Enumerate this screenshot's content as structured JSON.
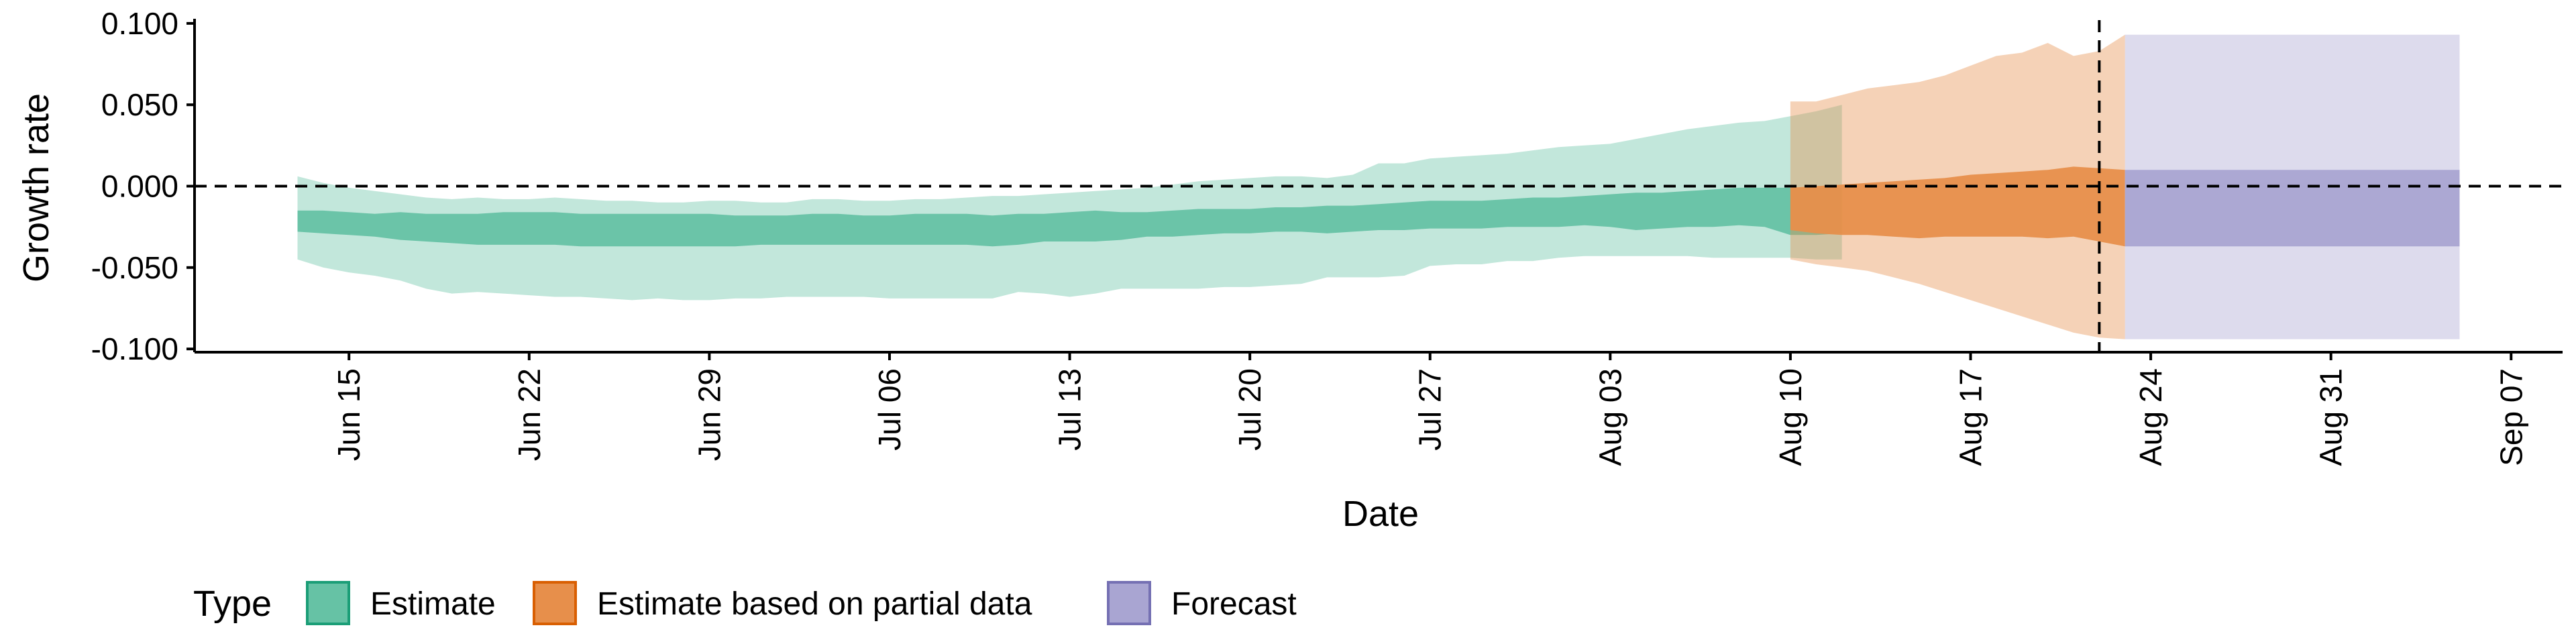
{
  "chart_data": {
    "type": "area",
    "title": "",
    "xlabel": "Date",
    "ylabel": "Growth rate",
    "ylim": [
      -0.102,
      0.102
    ],
    "xlim": [
      "2020-06-09",
      "2020-09-09"
    ],
    "y_ticks": [
      0.1,
      0.05,
      0.0,
      -0.05,
      -0.1
    ],
    "y_tick_labels": [
      "0.100",
      "0.050",
      "0.000",
      "-0.050",
      "-0.100"
    ],
    "x_ticks": [
      "2020-06-15",
      "2020-06-22",
      "2020-06-29",
      "2020-07-06",
      "2020-07-13",
      "2020-07-20",
      "2020-07-27",
      "2020-08-03",
      "2020-08-10",
      "2020-08-17",
      "2020-08-24",
      "2020-08-31",
      "2020-09-07"
    ],
    "x_tick_labels": [
      "Jun 15",
      "Jun 22",
      "Jun 29",
      "Jul 06",
      "Jul 13",
      "Jul 20",
      "Jul 27",
      "Aug 03",
      "Aug 10",
      "Aug 17",
      "Aug 24",
      "Aug 31",
      "Sep 07"
    ],
    "reference_lines": {
      "horizontal_y": 0.0,
      "vertical_x": "2020-08-22",
      "style": "dashed"
    },
    "grid": false,
    "legend": {
      "title": "Type",
      "position": "bottom",
      "entries": [
        "Estimate",
        "Estimate based on partial data",
        "Forecast"
      ]
    },
    "series": [
      {
        "name": "Estimate",
        "fill": "#66C2A5",
        "border": "#1B9E77",
        "start": "2020-06-13",
        "outer_upper": [
          0.006,
          0.002,
          -0.001,
          -0.003,
          -0.005,
          -0.007,
          -0.008,
          -0.007,
          -0.008,
          -0.008,
          -0.007,
          -0.008,
          -0.009,
          -0.009,
          -0.01,
          -0.01,
          -0.009,
          -0.009,
          -0.01,
          -0.01,
          -0.008,
          -0.008,
          -0.009,
          -0.009,
          -0.008,
          -0.008,
          -0.007,
          -0.006,
          -0.006,
          -0.005,
          -0.004,
          -0.003,
          -0.002,
          -0.001,
          0.001,
          0.003,
          0.004,
          0.005,
          0.006,
          0.006,
          0.005,
          0.007,
          0.014,
          0.014,
          0.017,
          0.018,
          0.019,
          0.02,
          0.022,
          0.024,
          0.025,
          0.026,
          0.029,
          0.032,
          0.035,
          0.037,
          0.039,
          0.04,
          0.043,
          0.046,
          0.05
        ],
        "inner_upper": [
          -0.015,
          -0.015,
          -0.016,
          -0.017,
          -0.016,
          -0.017,
          -0.017,
          -0.017,
          -0.016,
          -0.016,
          -0.016,
          -0.017,
          -0.017,
          -0.017,
          -0.017,
          -0.017,
          -0.017,
          -0.018,
          -0.018,
          -0.018,
          -0.017,
          -0.017,
          -0.018,
          -0.018,
          -0.017,
          -0.017,
          -0.017,
          -0.018,
          -0.017,
          -0.017,
          -0.016,
          -0.015,
          -0.016,
          -0.016,
          -0.015,
          -0.014,
          -0.014,
          -0.014,
          -0.013,
          -0.013,
          -0.012,
          -0.012,
          -0.011,
          -0.01,
          -0.009,
          -0.009,
          -0.009,
          -0.008,
          -0.007,
          -0.007,
          -0.006,
          -0.005,
          -0.004,
          -0.004,
          -0.003,
          -0.002,
          -0.001,
          -0.001,
          -0.001,
          -0.001,
          -0.001
        ],
        "inner_lower": [
          -0.028,
          -0.029,
          -0.03,
          -0.031,
          -0.033,
          -0.034,
          -0.035,
          -0.036,
          -0.036,
          -0.036,
          -0.036,
          -0.037,
          -0.037,
          -0.037,
          -0.037,
          -0.037,
          -0.037,
          -0.037,
          -0.036,
          -0.036,
          -0.036,
          -0.036,
          -0.036,
          -0.036,
          -0.036,
          -0.036,
          -0.036,
          -0.037,
          -0.036,
          -0.034,
          -0.034,
          -0.034,
          -0.033,
          -0.031,
          -0.031,
          -0.03,
          -0.029,
          -0.029,
          -0.028,
          -0.028,
          -0.029,
          -0.028,
          -0.027,
          -0.027,
          -0.026,
          -0.026,
          -0.026,
          -0.025,
          -0.025,
          -0.025,
          -0.024,
          -0.025,
          -0.027,
          -0.026,
          -0.025,
          -0.025,
          -0.024,
          -0.025,
          -0.03,
          -0.03,
          -0.029
        ],
        "outer_lower": [
          -0.045,
          -0.05,
          -0.053,
          -0.055,
          -0.058,
          -0.063,
          -0.066,
          -0.065,
          -0.066,
          -0.067,
          -0.068,
          -0.068,
          -0.069,
          -0.07,
          -0.069,
          -0.07,
          -0.07,
          -0.069,
          -0.069,
          -0.068,
          -0.068,
          -0.068,
          -0.068,
          -0.069,
          -0.069,
          -0.069,
          -0.069,
          -0.069,
          -0.065,
          -0.066,
          -0.068,
          -0.066,
          -0.063,
          -0.063,
          -0.063,
          -0.063,
          -0.062,
          -0.062,
          -0.061,
          -0.06,
          -0.056,
          -0.056,
          -0.056,
          -0.055,
          -0.049,
          -0.048,
          -0.048,
          -0.046,
          -0.046,
          -0.044,
          -0.043,
          -0.043,
          -0.043,
          -0.043,
          -0.043,
          -0.044,
          -0.044,
          -0.044,
          -0.044,
          -0.045,
          -0.045
        ]
      },
      {
        "name": "Estimate based on partial data",
        "fill": "#E78F4B",
        "border": "#D95F02",
        "start": "2020-08-10",
        "outer_upper": [
          0.052,
          0.052,
          0.056,
          0.06,
          0.062,
          0.064,
          0.068,
          0.074,
          0.08,
          0.082,
          0.088,
          0.08,
          0.083,
          0.093
        ],
        "inner_upper": [
          -0.001,
          0.0,
          0.001,
          0.002,
          0.003,
          0.004,
          0.005,
          0.007,
          0.008,
          0.009,
          0.01,
          0.012,
          0.011,
          0.01
        ],
        "inner_lower": [
          -0.027,
          -0.029,
          -0.03,
          -0.03,
          -0.031,
          -0.032,
          -0.031,
          -0.031,
          -0.031,
          -0.031,
          -0.032,
          -0.031,
          -0.034,
          -0.037
        ],
        "outer_lower": [
          -0.045,
          -0.048,
          -0.05,
          -0.052,
          -0.056,
          -0.06,
          -0.065,
          -0.07,
          -0.075,
          -0.08,
          -0.085,
          -0.09,
          -0.093,
          -0.094
        ]
      },
      {
        "name": "Forecast",
        "fill": "#A9A5D2",
        "border": "#7570B3",
        "start": "2020-08-23",
        "end": "2020-09-05",
        "outer_upper": 0.093,
        "inner_upper": 0.01,
        "inner_lower": -0.037,
        "outer_lower": -0.094
      }
    ]
  }
}
